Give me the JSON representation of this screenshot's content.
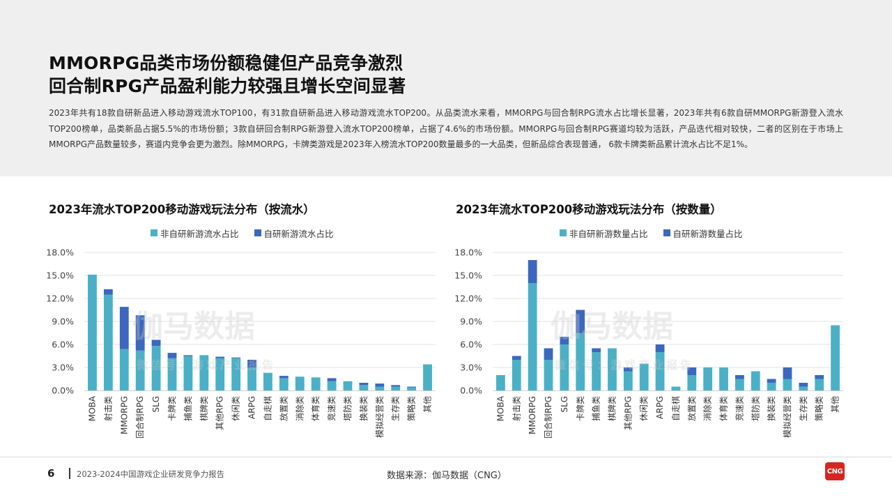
{
  "header": {
    "title_line1": "MMORPG品类市场份额稳健但产品竞争激烈",
    "title_line2": "回合制RPG产品盈利能力较强且增长空间显著",
    "intro": "2023年共有18款自研新品进入移动游戏流水TOP100，有31款自研新品进入移动游戏流水TOP200。从品类流水来看，MMORPG与回合制RPG流水占比增长显著，2023年共有6款自研MMORPG新游登入流水TOP200榜单，品类新品占据5.5%的市场份额；3款自研回合制RPG新游登入流水TOP200榜单，占据了4.6%的市场份额。MMORPG与回合制RPG赛道均较为活跃，产品迭代相对较快，二者的区别在于市场上MMORPG产品数量较多，赛道内竞争会更为激烈。除MMORPG，卡牌类游戏是2023年入榜流水TOP200数量最多的一大品类，但新品综合表现普通，  6款卡牌类新品累计流水占比不足1%。"
  },
  "watermark": {
    "main": "伽马数据",
    "sub": "微信号：游戏产业报告"
  },
  "colors": {
    "non_new": "#4bb0c6",
    "new": "#3b68be",
    "grid": "#e3e3e3"
  },
  "chart_data": [
    {
      "type": "bar",
      "stacked": true,
      "title": "2023年流水TOP200移动游戏玩法分布（按流水）",
      "categories": [
        "MOBA",
        "射击类",
        "MMORPG",
        "回合制RPG",
        "SLG",
        "卡牌类",
        "捕鱼类",
        "棋牌类",
        "其他RPG",
        "休闲类",
        "ARPG",
        "自走棋",
        "放置类",
        "消除类",
        "体育类",
        "竞速类",
        "塔防类",
        "换装类",
        "模拟经营类",
        "生存类",
        "策略类",
        "其他"
      ],
      "series": [
        {
          "name": "非自研新游流水占比",
          "values": [
            15.1,
            12.5,
            5.4,
            5.2,
            5.8,
            4.2,
            4.5,
            4.6,
            4.2,
            4.2,
            3.0,
            2.3,
            1.6,
            1.8,
            1.7,
            1.2,
            1.2,
            0.7,
            0.5,
            0.5,
            0.4,
            3.4
          ]
        },
        {
          "name": "自研新游流水占比",
          "values": [
            0.0,
            0.7,
            5.5,
            4.6,
            0.8,
            0.7,
            0.1,
            0.0,
            0.2,
            0.1,
            1.0,
            0.0,
            0.3,
            0.0,
            0.0,
            0.4,
            0.0,
            0.3,
            0.4,
            0.2,
            0.1,
            0.0
          ]
        }
      ],
      "ylim": [
        0,
        18
      ],
      "yticks": [
        "0.0%",
        "3.0%",
        "6.0%",
        "9.0%",
        "12.0%",
        "15.0%",
        "18.0%"
      ],
      "grid": true,
      "legend": "top"
    },
    {
      "type": "bar",
      "stacked": true,
      "title": "2023年流水TOP200移动游戏玩法分布（按数量）",
      "categories": [
        "MOBA",
        "射击类",
        "MMORPG",
        "回合制RPG",
        "SLG",
        "卡牌类",
        "捕鱼类",
        "棋牌类",
        "其他RPG",
        "休闲类",
        "ARPG",
        "自走棋",
        "放置类",
        "消除类",
        "体育类",
        "竞速类",
        "塔防类",
        "换装类",
        "模拟经营类",
        "生存类",
        "策略类",
        "其他"
      ],
      "series": [
        {
          "name": "非自研新游数量占比",
          "values": [
            2.0,
            4.0,
            14.0,
            4.0,
            6.0,
            7.5,
            5.0,
            5.5,
            2.5,
            3.5,
            5.0,
            0.5,
            2.0,
            3.0,
            3.0,
            1.5,
            2.5,
            1.0,
            1.5,
            0.5,
            1.5,
            8.5
          ]
        },
        {
          "name": "自研新游数量占比",
          "values": [
            0.0,
            0.5,
            3.0,
            1.5,
            1.0,
            3.0,
            0.5,
            0.0,
            0.5,
            0.0,
            1.0,
            0.0,
            1.0,
            0.0,
            0.0,
            0.5,
            0.0,
            0.5,
            1.5,
            0.5,
            0.5,
            0.0
          ]
        }
      ],
      "ylim": [
        0,
        18
      ],
      "yticks": [
        "0.0%",
        "3.0%",
        "6.0%",
        "9.0%",
        "12.0%",
        "15.0%",
        "18.0%"
      ],
      "grid": true,
      "legend": "top"
    }
  ],
  "footer": {
    "page_number": "6",
    "report_name": "2023-2024中国游戏企业研发竞争力报告",
    "source": "数据来源：伽马数据（CNG）",
    "logo_text": "CNG"
  }
}
